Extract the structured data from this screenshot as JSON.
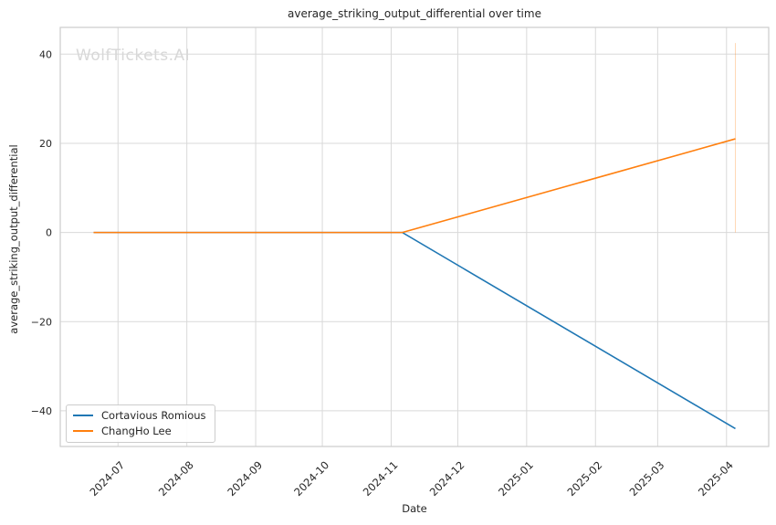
{
  "chart_data": {
    "type": "line",
    "title": "average_striking_output_differential over time",
    "xlabel": "Date",
    "ylabel": "average_striking_output_differential",
    "watermark": "WolfTickets.AI",
    "grid": true,
    "legend_position": "lower left",
    "xlim": [
      "2024-06-05",
      "2025-04-20"
    ],
    "ylim": [
      -48,
      46
    ],
    "x_ticks": [
      {
        "date": "2024-07-01",
        "label": "2024-07"
      },
      {
        "date": "2024-08-01",
        "label": "2024-08"
      },
      {
        "date": "2024-09-01",
        "label": "2024-09"
      },
      {
        "date": "2024-10-01",
        "label": "2024-10"
      },
      {
        "date": "2024-11-01",
        "label": "2024-11"
      },
      {
        "date": "2024-12-01",
        "label": "2024-12"
      },
      {
        "date": "2025-01-01",
        "label": "2025-01"
      },
      {
        "date": "2025-02-01",
        "label": "2025-02"
      },
      {
        "date": "2025-03-01",
        "label": "2025-03"
      },
      {
        "date": "2025-04-01",
        "label": "2025-04"
      }
    ],
    "y_ticks": [
      -40,
      -20,
      0,
      20,
      40
    ],
    "series": [
      {
        "name": "Cortavious Romious",
        "color": "#1f77b4",
        "points": [
          [
            "2024-06-20",
            0
          ],
          [
            "2024-11-06",
            0
          ],
          [
            "2025-04-05",
            -44
          ]
        ]
      },
      {
        "name": "ChangHo Lee",
        "color": "#ff7f0e",
        "points": [
          [
            "2024-06-20",
            0
          ],
          [
            "2024-11-06",
            0
          ],
          [
            "2025-04-05",
            21
          ]
        ]
      }
    ],
    "annotations": [
      {
        "type": "vline",
        "date": "2025-04-05",
        "y_from": 0,
        "y_to": 42.5,
        "color": "#ff7f0e",
        "opacity": 0.3
      }
    ],
    "grid_color": "#d9d9d9",
    "spine_color": "#cccccc"
  }
}
